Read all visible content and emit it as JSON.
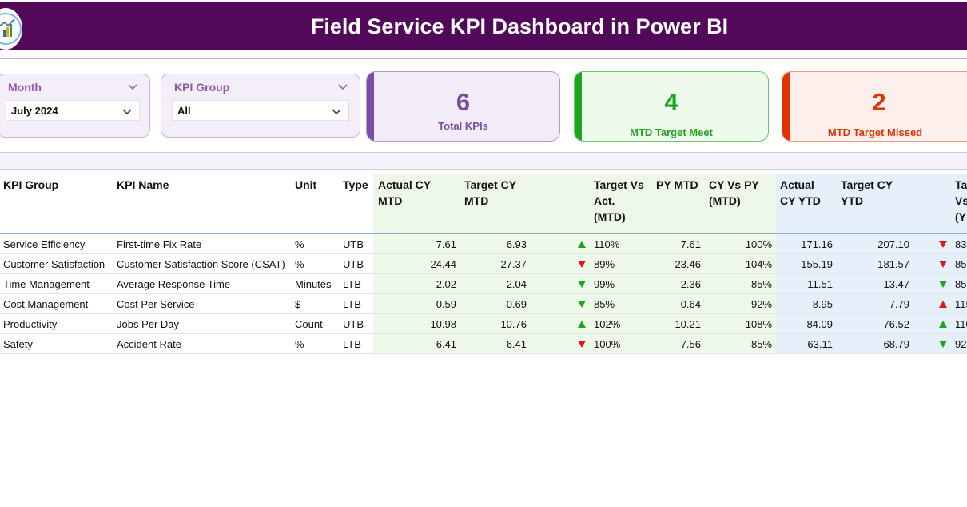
{
  "header": {
    "title": "Field Service KPI Dashboard in Power BI"
  },
  "slicers": {
    "month": {
      "label": "Month",
      "value": "July 2024"
    },
    "kpi_group": {
      "label": "KPI Group",
      "value": "All"
    }
  },
  "cards": [
    {
      "value": "6",
      "label": "Total KPIs",
      "color": "#7b4ea3"
    },
    {
      "value": "4",
      "label": "MTD Target Meet",
      "color": "#1ea51e"
    },
    {
      "value": "2",
      "label": "MTD Target Missed",
      "color": "#dd3300"
    }
  ],
  "table": {
    "headers": {
      "kpi_group": "KPI Group",
      "kpi_name": "KPI Name",
      "unit": "Unit",
      "type": "Type",
      "actual_cy_mtd": [
        "Actual CY",
        "MTD"
      ],
      "target_cy_mtd": [
        "Target CY",
        "MTD"
      ],
      "target_vs_act_mtd": [
        "Target Vs",
        "Act.",
        "(MTD)"
      ],
      "py_mtd": "PY MTD",
      "cy_vs_py_mtd": [
        "CY Vs PY",
        "(MTD)"
      ],
      "actual_cy_ytd": [
        "Actual",
        "CY YTD"
      ],
      "target_cy_ytd": [
        "Target CY",
        "YTD"
      ],
      "target_vs_ytd": [
        "Ta",
        "Vs",
        "(Y"
      ]
    },
    "rows": [
      {
        "kpi_group": "Service Efficiency",
        "kpi_name": "First-time Fix Rate",
        "unit": "%",
        "type": "UTB",
        "actual_mtd": "7.61",
        "target_mtd": "6.93",
        "mtd_icon": "up-green",
        "tva_mtd": "110%",
        "py_mtd": "7.61",
        "cy_vs_py": "100%",
        "actual_ytd": "171.16",
        "target_ytd": "207.10",
        "ytd_icon": "down-red",
        "tva_ytd": "83"
      },
      {
        "kpi_group": "Customer Satisfaction",
        "kpi_name": "Customer Satisfaction Score (CSAT)",
        "unit": "%",
        "type": "UTB",
        "actual_mtd": "24.44",
        "target_mtd": "27.37",
        "mtd_icon": "down-red",
        "tva_mtd": "89%",
        "py_mtd": "23.46",
        "cy_vs_py": "104%",
        "actual_ytd": "155.19",
        "target_ytd": "181.57",
        "ytd_icon": "down-red",
        "tva_ytd": "85"
      },
      {
        "kpi_group": "Time Management",
        "kpi_name": "Average Response Time",
        "unit": "Minutes",
        "type": "LTB",
        "actual_mtd": "2.02",
        "target_mtd": "2.04",
        "mtd_icon": "down-green",
        "tva_mtd": "99%",
        "py_mtd": "2.36",
        "cy_vs_py": "85%",
        "actual_ytd": "11.51",
        "target_ytd": "13.47",
        "ytd_icon": "down-green",
        "tva_ytd": "85"
      },
      {
        "kpi_group": "Cost Management",
        "kpi_name": "Cost Per Service",
        "unit": "$",
        "type": "LTB",
        "actual_mtd": "0.59",
        "target_mtd": "0.69",
        "mtd_icon": "down-green",
        "tva_mtd": "85%",
        "py_mtd": "0.64",
        "cy_vs_py": "92%",
        "actual_ytd": "8.95",
        "target_ytd": "7.79",
        "ytd_icon": "up-red",
        "tva_ytd": "115"
      },
      {
        "kpi_group": "Productivity",
        "kpi_name": "Jobs Per Day",
        "unit": "Count",
        "type": "UTB",
        "actual_mtd": "10.98",
        "target_mtd": "10.76",
        "mtd_icon": "up-green",
        "tva_mtd": "102%",
        "py_mtd": "10.21",
        "cy_vs_py": "108%",
        "actual_ytd": "84.09",
        "target_ytd": "76.52",
        "ytd_icon": "up-green",
        "tva_ytd": "110"
      },
      {
        "kpi_group": "Safety",
        "kpi_name": "Accident Rate",
        "unit": "%",
        "type": "LTB",
        "actual_mtd": "6.41",
        "target_mtd": "6.41",
        "mtd_icon": "down-red",
        "tva_mtd": "100%",
        "py_mtd": "7.56",
        "cy_vs_py": "85%",
        "actual_ytd": "63.11",
        "target_ytd": "68.79",
        "ytd_icon": "down-green",
        "tva_ytd": "92"
      }
    ]
  }
}
